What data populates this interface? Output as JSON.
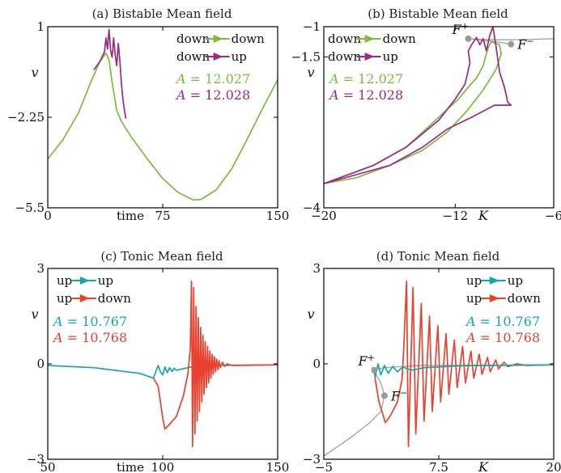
{
  "chart_data": [
    {
      "panel": "a",
      "type": "line",
      "title": "(a) Bistable Mean field",
      "xlabel": "time",
      "ylabel": "v",
      "xlim": [
        0,
        150
      ],
      "ylim": [
        -5.5,
        1
      ],
      "xticks": [
        "0",
        "75",
        "150"
      ],
      "yticks": [
        "1",
        "-2.25",
        "-5.5"
      ],
      "legend": [
        {
          "label": "down→down",
          "from": "down",
          "to": "down",
          "color": "#7cbb3f"
        },
        {
          "label": "down→up",
          "from": "down",
          "to": "up",
          "color": "#9b2a84"
        }
      ],
      "annotations": [
        {
          "text": "A = 12.027",
          "color": "#7cbb3f"
        },
        {
          "text": "A = 12.028",
          "color": "#9b2a84"
        }
      ],
      "series": [
        {
          "color": "#7cbb3f",
          "points": [
            [
              0,
              -3.75
            ],
            [
              10,
              -3.05
            ],
            [
              20,
              -2.1
            ],
            [
              28,
              -1.0
            ],
            [
              34,
              -0.25
            ],
            [
              38,
              0.05
            ],
            [
              40,
              -0.2
            ],
            [
              42,
              -1.0
            ],
            [
              45,
              -2.0
            ],
            [
              48,
              -2.4
            ],
            [
              55,
              -3.0
            ],
            [
              65,
              -3.75
            ],
            [
              75,
              -4.45
            ],
            [
              85,
              -4.95
            ],
            [
              95,
              -5.22
            ],
            [
              100,
              -5.2
            ],
            [
              110,
              -4.85
            ],
            [
              120,
              -4.1
            ],
            [
              130,
              -3.05
            ],
            [
              140,
              -1.95
            ],
            [
              150,
              -0.9
            ]
          ]
        },
        {
          "color": "#9b2a84",
          "points": [
            [
              30,
              -0.55
            ],
            [
              34,
              -0.25
            ],
            [
              37,
              0.1
            ],
            [
              38,
              0.6
            ],
            [
              39,
              0.2
            ],
            [
              40,
              0.9
            ],
            [
              41,
              0.15
            ],
            [
              42,
              -0.1
            ],
            [
              43,
              0.6
            ],
            [
              44,
              0.0
            ],
            [
              45,
              -0.4
            ],
            [
              46,
              0.4
            ],
            [
              47,
              -0.2
            ],
            [
              48,
              -1.0
            ],
            [
              49,
              -1.6
            ],
            [
              50,
              -2.0
            ],
            [
              51,
              -2.3
            ]
          ]
        }
      ]
    },
    {
      "panel": "b",
      "type": "line",
      "title": "(b) Bistable Mean field",
      "xlabel": "K",
      "ylabel": "v",
      "xlim": [
        -20,
        -6
      ],
      "ylim": [
        -4,
        -1
      ],
      "xticks": [
        "-20",
        "-12",
        "-6"
      ],
      "yticks": [
        "-1",
        "-1.5",
        "-4"
      ],
      "legend": [
        {
          "label": "down→down",
          "from": "down",
          "to": "down",
          "color": "#7cbb3f"
        },
        {
          "label": "down→up",
          "from": "down",
          "to": "up",
          "color": "#9b2a84"
        }
      ],
      "annotations": [
        {
          "text": "A = 12.027",
          "color": "#7cbb3f"
        },
        {
          "text": "A = 12.028",
          "color": "#9b2a84"
        }
      ],
      "points": [
        {
          "label": "F+",
          "sup": "+",
          "x": -11.2,
          "y": -1.2
        },
        {
          "label": "F−",
          "sup": "−",
          "x": -8.6,
          "y": -1.29
        }
      ],
      "series": [
        {
          "color": "#9a9a9a",
          "points": [
            [
              -11.2,
              -1.2
            ],
            [
              -10.5,
              -1.21
            ],
            [
              -9.5,
              -1.215
            ],
            [
              -8.5,
              -1.215
            ],
            [
              -7.5,
              -1.21
            ],
            [
              -6,
              -1.2
            ]
          ]
        },
        {
          "color": "#9a9a9a",
          "points": [
            [
              -11.2,
              -1.2
            ],
            [
              -9.8,
              -1.24
            ],
            [
              -9.0,
              -1.27
            ],
            [
              -8.6,
              -1.29
            ]
          ]
        },
        {
          "color": "#7cbb3f",
          "points": [
            [
              -20,
              -3.6
            ],
            [
              -18,
              -3.5
            ],
            [
              -16,
              -3.3
            ],
            [
              -14,
              -3.05
            ],
            [
              -12.5,
              -2.75
            ],
            [
              -11.3,
              -2.4
            ],
            [
              -10.3,
              -2.05
            ],
            [
              -9.5,
              -1.7
            ],
            [
              -9.2,
              -1.45
            ],
            [
              -9.3,
              -1.3
            ],
            [
              -9.8,
              -1.25
            ],
            [
              -10.0,
              -1.35
            ],
            [
              -10.1,
              -1.45
            ],
            [
              -10.3,
              -1.65
            ],
            [
              -10.7,
              -1.85
            ],
            [
              -11.2,
              -2.0
            ],
            [
              -11.8,
              -2.2
            ],
            [
              -13,
              -2.5
            ],
            [
              -15,
              -3.0
            ],
            [
              -17,
              -3.3
            ],
            [
              -20,
              -3.6
            ]
          ]
        },
        {
          "color": "#9b2a84",
          "points": [
            [
              -20,
              -3.6
            ],
            [
              -17,
              -3.3
            ],
            [
              -15,
              -3.0
            ],
            [
              -13,
              -2.55
            ],
            [
              -12,
              -2.2
            ],
            [
              -11.4,
              -1.95
            ],
            [
              -11.1,
              -1.6
            ],
            [
              -11.2,
              -1.4
            ],
            [
              -11.0,
              -1.3
            ],
            [
              -10.7,
              -1.18
            ],
            [
              -10.5,
              -1.3
            ],
            [
              -10.3,
              -1.2
            ],
            [
              -10.1,
              -1.4
            ],
            [
              -9.9,
              -1.15
            ],
            [
              -9.7,
              -1.0
            ],
            [
              -9.5,
              -1.35
            ],
            [
              -9.3,
              -1.75
            ],
            [
              -9.0,
              -2.0
            ],
            [
              -8.8,
              -2.25
            ],
            [
              -8.6,
              -2.3
            ],
            [
              -9.6,
              -2.3
            ],
            [
              -11,
              -2.5
            ],
            [
              -12.5,
              -2.7
            ],
            [
              -14,
              -3.0
            ],
            [
              -16,
              -3.3
            ],
            [
              -20,
              -3.6
            ]
          ]
        }
      ]
    },
    {
      "panel": "c",
      "type": "line",
      "title": "(c) Tonic Mean field",
      "xlabel": "time",
      "ylabel": "v",
      "xlim": [
        50,
        150
      ],
      "ylim": [
        -3,
        3
      ],
      "xticks": [
        "50",
        "100",
        "150"
      ],
      "yticks": [
        "3",
        "0",
        "-3"
      ],
      "legend": [
        {
          "label": "up→up",
          "from": "up",
          "to": "up",
          "color": "#1aa5a5"
        },
        {
          "label": "up→down",
          "from": "up",
          "to": "down",
          "color": "#e8412f"
        }
      ],
      "annotations": [
        {
          "text": "A = 10.767",
          "color": "#1aa5a5"
        },
        {
          "text": "A = 10.768",
          "color": "#e8412f"
        }
      ],
      "series": [
        {
          "color": "#1aa5a5",
          "points": [
            [
              50,
              -0.05
            ],
            [
              70,
              -0.12
            ],
            [
              90,
              -0.3
            ],
            [
              96,
              -0.45
            ],
            [
              98,
              -0.05
            ],
            [
              99,
              -0.25
            ],
            [
              100,
              -0.35
            ],
            [
              101,
              -0.1
            ],
            [
              102,
              -0.28
            ],
            [
              103,
              -0.12
            ],
            [
              104,
              -0.24
            ],
            [
              105,
              -0.14
            ],
            [
              106,
              -0.2
            ],
            [
              108,
              -0.17
            ],
            [
              112,
              -0.1
            ],
            [
              120,
              -0.05
            ],
            [
              150,
              -0.03
            ]
          ]
        },
        {
          "color": "#e8412f",
          "points": [
            [
              96,
              -0.45
            ],
            [
              98,
              -0.7
            ],
            [
              99,
              -1.2
            ],
            [
              100,
              -1.7
            ],
            [
              101,
              -2.05
            ],
            [
              103,
              -1.9
            ],
            [
              106,
              -1.65
            ],
            [
              109,
              -1.0
            ],
            [
              111,
              -0.3
            ],
            [
              112,
              0.5
            ],
            [
              112.5,
              2.6
            ],
            [
              113,
              -2.6
            ],
            [
              113.5,
              2.4
            ],
            [
              114,
              -2.2
            ],
            [
              114.5,
              1.8
            ],
            [
              115,
              -1.8
            ],
            [
              115.5,
              1.45
            ],
            [
              116,
              -1.5
            ],
            [
              116.5,
              1.15
            ],
            [
              117,
              -1.2
            ],
            [
              117.5,
              0.9
            ],
            [
              118,
              -0.95
            ],
            [
              118.5,
              0.7
            ],
            [
              119,
              -0.75
            ],
            [
              119.5,
              0.55
            ],
            [
              120,
              -0.6
            ],
            [
              120.5,
              0.4
            ],
            [
              121,
              -0.45
            ],
            [
              121.5,
              0.3
            ],
            [
              122,
              -0.33
            ],
            [
              122.5,
              0.22
            ],
            [
              123,
              -0.25
            ],
            [
              123.5,
              0.15
            ],
            [
              124,
              -0.18
            ],
            [
              124.5,
              0.1
            ],
            [
              125,
              -0.12
            ],
            [
              126,
              0.05
            ],
            [
              127,
              -0.08
            ],
            [
              128,
              0.0
            ],
            [
              130,
              -0.05
            ],
            [
              150,
              -0.03
            ]
          ]
        }
      ]
    },
    {
      "panel": "d",
      "type": "line",
      "title": "(d) Tonic Mean field",
      "xlabel": "K",
      "ylabel": "v",
      "xlim": [
        -5,
        20
      ],
      "ylim": [
        -3,
        3
      ],
      "xticks": [
        "-5",
        "7.5",
        "20"
      ],
      "yticks": [
        "3",
        "0",
        "-3"
      ],
      "legend": [
        {
          "label": "up→up",
          "from": "up",
          "to": "up",
          "color": "#1aa5a5"
        },
        {
          "label": "up→down",
          "from": "up",
          "to": "down",
          "color": "#e8412f"
        }
      ],
      "annotations": [
        {
          "text": "A = 10.767",
          "color": "#1aa5a5"
        },
        {
          "text": "A = 10.768",
          "color": "#e8412f"
        }
      ],
      "points": [
        {
          "label": "F+",
          "sup": "+",
          "x": 0.5,
          "y": -0.2
        },
        {
          "label": "F−",
          "sup": "−",
          "x": 1.6,
          "y": -1.0
        }
      ],
      "series": [
        {
          "color": "#9a9a9a",
          "points": [
            [
              -5,
              -2.9
            ],
            [
              -2,
              -2.3
            ],
            [
              0,
              -1.85
            ],
            [
              1.2,
              -1.5
            ],
            [
              1.6,
              -1.0
            ],
            [
              1.2,
              -0.6
            ],
            [
              0.6,
              -0.3
            ],
            [
              0.5,
              -0.2
            ],
            [
              1.5,
              -0.12
            ],
            [
              5,
              -0.06
            ],
            [
              10,
              -0.04
            ],
            [
              20,
              -0.03
            ]
          ]
        },
        {
          "color": "#e8412f",
          "points": [
            [
              0.5,
              -0.2
            ],
            [
              0.6,
              -0.5
            ],
            [
              1.0,
              -1.2
            ],
            [
              1.7,
              -1.85
            ],
            [
              2.2,
              -1.65
            ],
            [
              3.0,
              -1.2
            ],
            [
              3.5,
              -0.5
            ],
            [
              3.7,
              0.5
            ],
            [
              4.0,
              2.6
            ],
            [
              4.2,
              -2.6
            ],
            [
              4.7,
              2.4
            ],
            [
              5.0,
              -2.2
            ],
            [
              5.6,
              1.9
            ],
            [
              5.9,
              -1.8
            ],
            [
              6.5,
              1.5
            ],
            [
              6.8,
              -1.5
            ],
            [
              7.4,
              1.2
            ],
            [
              7.7,
              -1.2
            ],
            [
              8.3,
              0.95
            ],
            [
              8.6,
              -0.95
            ],
            [
              9.2,
              0.75
            ],
            [
              9.5,
              -0.75
            ],
            [
              10.1,
              0.55
            ],
            [
              10.4,
              -0.6
            ],
            [
              11.0,
              0.4
            ],
            [
              11.3,
              -0.45
            ],
            [
              11.9,
              0.3
            ],
            [
              12.2,
              -0.33
            ],
            [
              12.8,
              0.2
            ],
            [
              13.1,
              -0.25
            ],
            [
              13.7,
              0.12
            ],
            [
              14.0,
              -0.16
            ],
            [
              14.6,
              0.05
            ],
            [
              15.0,
              -0.09
            ],
            [
              16,
              0.0
            ],
            [
              17,
              -0.05
            ],
            [
              20,
              -0.03
            ]
          ]
        },
        {
          "color": "#1aa5a5",
          "points": [
            [
              0.3,
              -0.1
            ],
            [
              0.6,
              -0.4
            ],
            [
              0.9,
              0.0
            ],
            [
              1.2,
              -0.35
            ],
            [
              1.6,
              -0.05
            ],
            [
              2.0,
              -0.3
            ],
            [
              2.5,
              -0.08
            ],
            [
              3.0,
              -0.25
            ],
            [
              3.6,
              -0.1
            ],
            [
              4.5,
              -0.2
            ],
            [
              6,
              -0.12
            ],
            [
              10,
              -0.06
            ],
            [
              20,
              -0.03
            ]
          ]
        }
      ]
    }
  ]
}
